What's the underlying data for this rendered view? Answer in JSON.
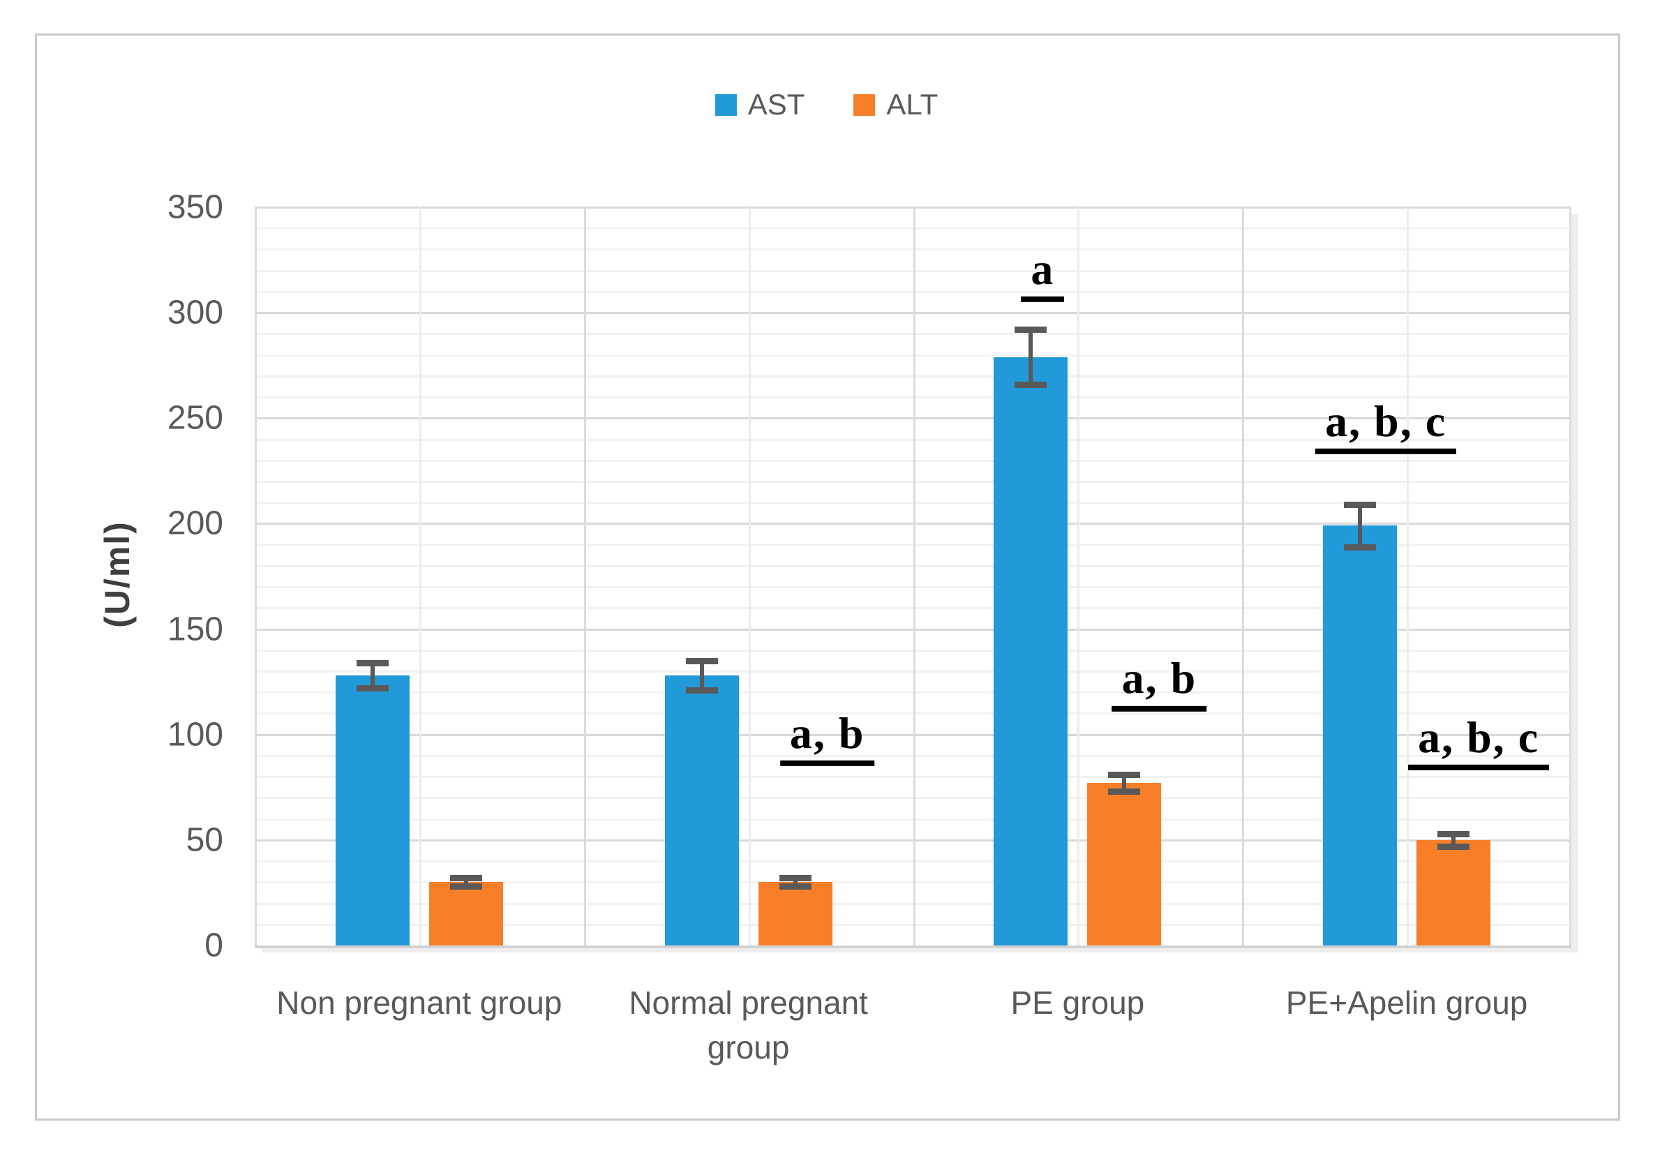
{
  "legend": {
    "items": [
      {
        "label": "AST",
        "color": "#2299D8"
      },
      {
        "label": "ALT",
        "color": "#F87E27"
      }
    ]
  },
  "chart_data": {
    "type": "bar",
    "title": "",
    "xlabel": "",
    "ylabel": "(U/ml)",
    "ylim": [
      0,
      350
    ],
    "y_major_tick": 50,
    "y_minor_tick": 10,
    "yticks": [
      0,
      50,
      100,
      150,
      200,
      250,
      300,
      350
    ],
    "grid": {
      "horizontal_major": true,
      "horizontal_minor": true,
      "vertical": true
    },
    "legend_position": "top-center",
    "categories": [
      "Non pregnant group",
      "Normal pregnant group",
      "PE group",
      "PE+Apelin group"
    ],
    "series": [
      {
        "name": "AST",
        "color": "#2299D8",
        "values": [
          128,
          128,
          279,
          199
        ],
        "errors": [
          6,
          7,
          13,
          10
        ]
      },
      {
        "name": "ALT",
        "color": "#F87E27",
        "values": [
          30,
          30,
          77,
          50
        ],
        "errors": [
          2,
          2,
          4,
          3
        ]
      }
    ],
    "error_bar_color": "#595959",
    "annotations": [
      {
        "category": 1,
        "series": "ALT",
        "text": "a, b",
        "y": 85,
        "dx": 46
      },
      {
        "category": 2,
        "series": "AST",
        "text": "a",
        "y": 305,
        "dx": 17
      },
      {
        "category": 2,
        "series": "ALT",
        "text": "a, b",
        "y": 111,
        "dx": 50
      },
      {
        "category": 3,
        "series": "AST",
        "text": "a, b, c",
        "y": 233,
        "dx": 37
      },
      {
        "category": 3,
        "series": "ALT",
        "text": "a, b, c",
        "y": 83,
        "dx": 36
      }
    ]
  }
}
